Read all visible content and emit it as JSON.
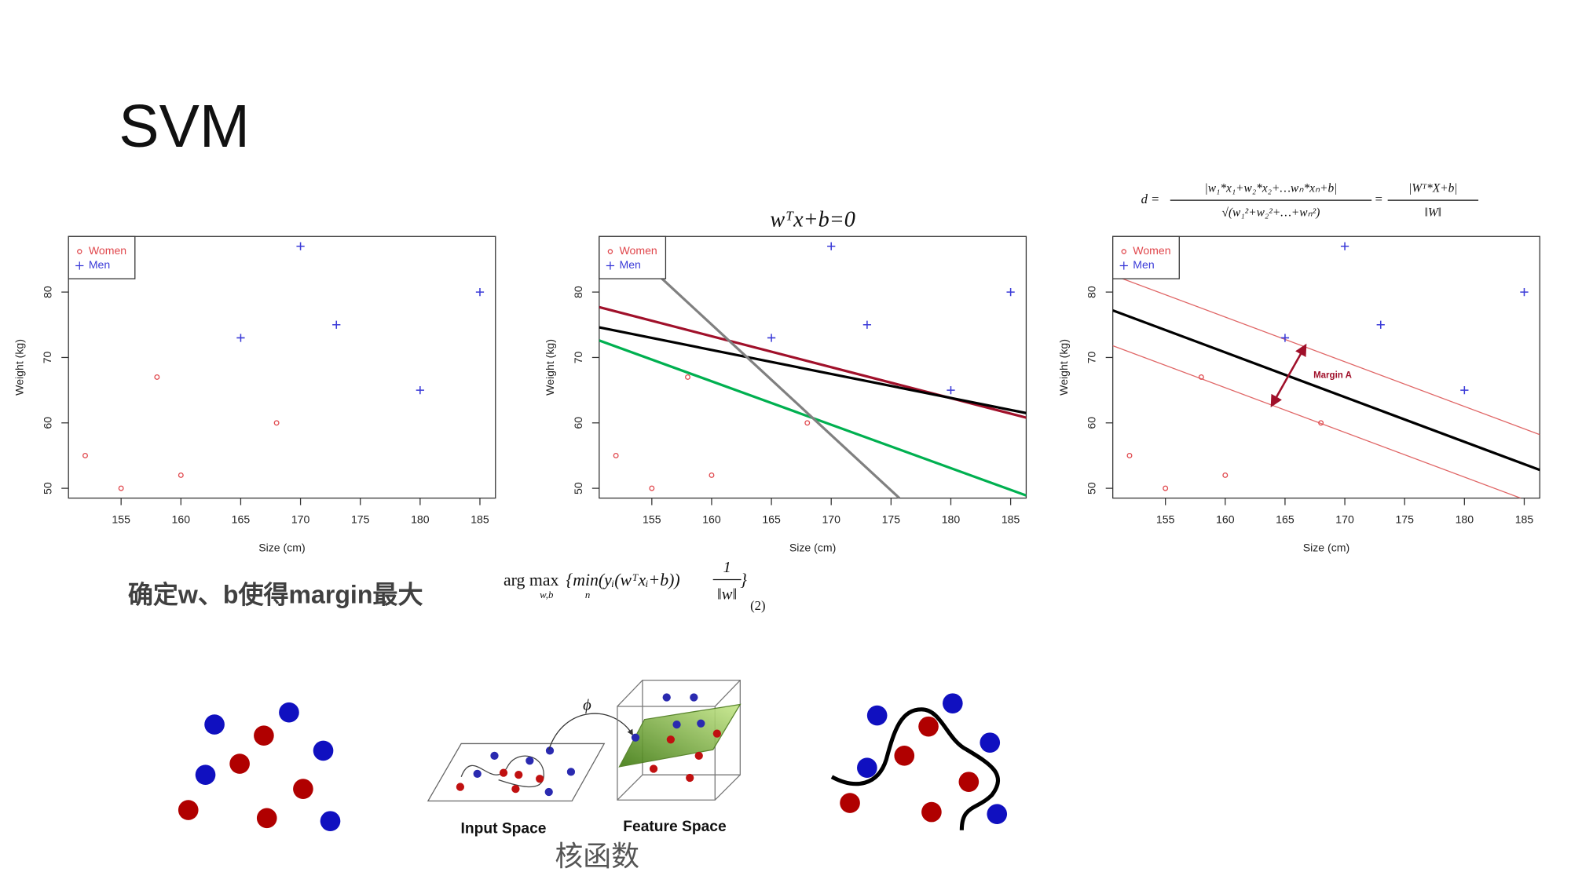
{
  "slide": {
    "title": "SVM",
    "caption": "确定w、b使得margin最大",
    "argmax": {
      "op": "arg max",
      "op_sub": "w,b",
      "body": "{min(yᵢ(wᵀxᵢ+b))",
      "body_sub": "n",
      "num": "1",
      "den": "‖w‖",
      "close": "}",
      "number": "(2)"
    },
    "kernel": {
      "phi": "ϕ",
      "input": "Input Space",
      "feature": "Feature Space",
      "label": "核函数"
    }
  },
  "chart_data": [
    {
      "type": "scatter",
      "xlabel": "Size (cm)",
      "ylabel": "Weight (kg)",
      "xlim": [
        150.6,
        186.3
      ],
      "ylim": [
        48.5,
        88.5
      ],
      "xticks": [
        155,
        160,
        165,
        170,
        175,
        180,
        185
      ],
      "yticks": [
        50,
        60,
        70,
        80
      ],
      "legend": "upper left",
      "series": [
        {
          "name": "Women",
          "color": "#e0474c",
          "marker": "circle",
          "x": [
            152,
            155,
            158,
            160,
            168
          ],
          "y": [
            55,
            50,
            67,
            52,
            60
          ]
        },
        {
          "name": "Men",
          "color": "#3b3bd8",
          "marker": "plus",
          "x": [
            165,
            170,
            173,
            180,
            185
          ],
          "y": [
            73,
            87,
            75,
            65,
            80
          ]
        }
      ]
    },
    {
      "type": "scatter",
      "title": "wᵀx+b=0",
      "xlabel": "Size (cm)",
      "ylabel": "Weight (kg)",
      "xlim": [
        150.6,
        186.3
      ],
      "ylim": [
        48.5,
        88.5
      ],
      "xticks": [
        155,
        160,
        165,
        170,
        175,
        180,
        185
      ],
      "yticks": [
        50,
        60,
        70,
        80
      ],
      "legend": "upper left",
      "series": [
        {
          "name": "Women",
          "color": "#e0474c",
          "marker": "circle",
          "x": [
            152,
            155,
            158,
            160,
            168
          ],
          "y": [
            55,
            50,
            67,
            52,
            60
          ]
        },
        {
          "name": "Men",
          "color": "#3b3bd8",
          "marker": "plus",
          "x": [
            165,
            170,
            173,
            180,
            185
          ],
          "y": [
            73,
            87,
            75,
            65,
            80
          ]
        }
      ],
      "lines": [
        {
          "color": "#a0102a",
          "x": [
            150.6,
            186.3
          ],
          "y": [
            77.7,
            60.8
          ]
        },
        {
          "color": "#000000",
          "x": [
            150.6,
            186.3
          ],
          "y": [
            74.6,
            61.5
          ]
        },
        {
          "color": "#00b050",
          "x": [
            150.6,
            186.3
          ],
          "y": [
            72.6,
            48.9
          ]
        },
        {
          "color": "#808080",
          "x": [
            155.7,
            175.7
          ],
          "y": [
            82.3,
            48.5
          ]
        }
      ]
    },
    {
      "type": "scatter",
      "formula": {
        "lhs": "d =",
        "num1": "|w₁*x₁+w₂*x₂+…wₙ*xₙ+b|",
        "den1": "√(w₁²+w₂²+…+wₙ²)",
        "eq": "=",
        "num2": "|Wᵀ*X+b|",
        "den2": "‖W‖"
      },
      "xlabel": "Size (cm)",
      "ylabel": "Weight (kg)",
      "xlim": [
        150.6,
        186.3
      ],
      "ylim": [
        48.5,
        88.5
      ],
      "xticks": [
        155,
        160,
        165,
        170,
        175,
        180,
        185
      ],
      "yticks": [
        50,
        60,
        70,
        80
      ],
      "legend": "upper left",
      "series": [
        {
          "name": "Women",
          "color": "#e0474c",
          "marker": "circle",
          "x": [
            152,
            155,
            158,
            160,
            168
          ],
          "y": [
            55,
            50,
            67,
            52,
            60
          ]
        },
        {
          "name": "Men",
          "color": "#3b3bd8",
          "marker": "plus",
          "x": [
            165,
            170,
            173,
            180,
            185
          ],
          "y": [
            73,
            87,
            75,
            65,
            80
          ]
        }
      ],
      "lines": [
        {
          "color": "#e06666",
          "x": [
            150.6,
            186.3
          ],
          "y": [
            82.6,
            58.2
          ]
        },
        {
          "color": "#000000",
          "x": [
            150.6,
            186.3
          ],
          "y": [
            77.2,
            52.8
          ]
        },
        {
          "color": "#e06666",
          "x": [
            150.6,
            184.7
          ],
          "y": [
            71.8,
            48.5
          ]
        }
      ],
      "arrow": {
        "color": "#a0102a",
        "x": [
          166.7,
          163.9
        ],
        "y": [
          71.8,
          62.7
        ]
      },
      "annotations": [
        "Margin A"
      ]
    }
  ]
}
